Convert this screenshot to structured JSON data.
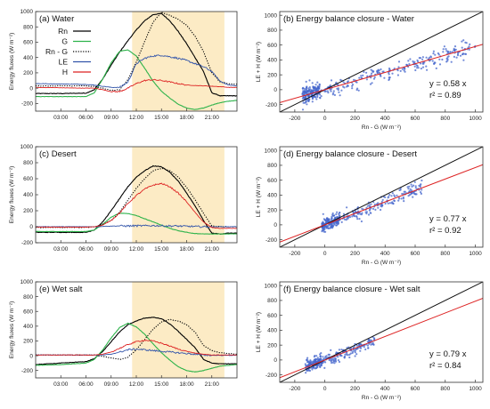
{
  "chart_data": [
    {
      "panel": "a",
      "type": "line",
      "title": "(a) Water",
      "ylabel": "Energy fluxes (W m⁻²)",
      "xticks": [
        "03:00",
        "06:00",
        "09:00",
        "12:00",
        "15:00",
        "18:00",
        "21:00"
      ],
      "xlim_hours": [
        0,
        24
      ],
      "ylim": [
        -300,
        1000
      ],
      "yticks": [
        -200,
        0,
        200,
        400,
        600,
        800,
        1000
      ],
      "shaded_hours": [
        11.5,
        22.5
      ],
      "shade_color": "#fcebc5",
      "legend": [
        "Rn",
        "G",
        "Rn - G",
        "LE",
        "H"
      ],
      "series": [
        {
          "name": "Rn",
          "color": "#000000",
          "dash": "solid",
          "x": [
            0,
            3,
            6,
            7,
            8,
            9,
            10,
            11,
            12,
            13,
            14,
            15,
            16,
            17,
            18,
            19,
            20,
            21,
            22,
            23,
            24
          ],
          "y": [
            -70,
            -70,
            -65,
            -20,
            120,
            300,
            470,
            620,
            760,
            880,
            960,
            975,
            880,
            740,
            580,
            400,
            220,
            -60,
            -100,
            -100,
            -100
          ]
        },
        {
          "name": "G",
          "color": "#2db34a",
          "dash": "solid",
          "x": [
            0,
            3,
            6,
            7,
            8,
            9,
            10,
            11,
            12,
            13,
            14,
            15,
            16,
            17,
            18,
            19,
            20,
            21,
            22,
            23,
            24
          ],
          "y": [
            -110,
            -110,
            -110,
            -60,
            120,
            330,
            480,
            500,
            420,
            260,
            90,
            -40,
            -130,
            -210,
            -260,
            -280,
            -260,
            -220,
            -190,
            -170,
            -160
          ]
        },
        {
          "name": "Rn - G",
          "color": "#000000",
          "dash": "dot",
          "x": [
            0,
            3,
            6,
            7,
            8,
            9,
            10,
            11,
            12,
            13,
            14,
            15,
            16,
            17,
            18,
            19,
            20,
            21,
            22,
            23,
            24
          ],
          "y": [
            30,
            30,
            30,
            20,
            0,
            -30,
            -20,
            110,
            340,
            610,
            860,
            990,
            950,
            900,
            820,
            680,
            480,
            200,
            80,
            60,
            50
          ]
        },
        {
          "name": "LE",
          "color": "#3355aa",
          "dash": "solid",
          "x": [
            0,
            3,
            6,
            7,
            8,
            9,
            10,
            11,
            12,
            13,
            14,
            15,
            16,
            17,
            18,
            19,
            20,
            21,
            22,
            23,
            24
          ],
          "y": [
            60,
            55,
            50,
            40,
            25,
            10,
            10,
            80,
            320,
            390,
            420,
            430,
            410,
            390,
            360,
            320,
            280,
            220,
            90,
            40,
            30
          ]
        },
        {
          "name": "H",
          "color": "#dd2222",
          "dash": "solid",
          "x": [
            0,
            3,
            6,
            7,
            8,
            9,
            10,
            11,
            12,
            13,
            14,
            15,
            16,
            17,
            18,
            19,
            20,
            21,
            22,
            23,
            24
          ],
          "y": [
            10,
            5,
            0,
            0,
            -20,
            -45,
            -45,
            0,
            60,
            100,
            110,
            100,
            80,
            60,
            40,
            35,
            30,
            25,
            20,
            10,
            10
          ]
        }
      ]
    },
    {
      "panel": "b",
      "type": "scatter",
      "title": "(b) Energy balance closure - Water",
      "xlabel": "Rn - G (W m⁻²)",
      "ylabel": "LE + H (W m⁻²)",
      "xlim": [
        -300,
        1050
      ],
      "ylim": [
        -300,
        1050
      ],
      "ticks": [
        -200,
        0,
        200,
        400,
        600,
        800,
        1000
      ],
      "slope": 0.58,
      "r2": 0.89,
      "equation_text": "y = 0.58 x",
      "r2_text": "r² = 0.89",
      "points_x_range": [
        -150,
        1000
      ],
      "points_scatter": 55,
      "point_color": "#4466cc",
      "fit_color": "#dd2222"
    },
    {
      "panel": "c",
      "type": "line",
      "title": "(c) Desert",
      "ylabel": "Energy fluxes (W m⁻²)",
      "xticks": [
        "03:00",
        "06:00",
        "09:00",
        "12:00",
        "15:00",
        "18:00",
        "21:00"
      ],
      "xlim_hours": [
        0,
        24
      ],
      "ylim": [
        -200,
        1000
      ],
      "yticks": [
        -200,
        0,
        200,
        400,
        600,
        800,
        1000
      ],
      "shaded_hours": [
        11.5,
        22.5
      ],
      "shade_color": "#fcebc5",
      "series": [
        {
          "name": "Rn",
          "color": "#000000",
          "dash": "solid",
          "x": [
            0,
            3,
            6,
            7,
            8,
            9,
            10,
            11,
            12,
            13,
            14,
            15,
            16,
            17,
            18,
            19,
            20,
            21,
            22,
            23,
            24
          ],
          "y": [
            -70,
            -70,
            -70,
            -40,
            60,
            200,
            350,
            500,
            620,
            700,
            760,
            750,
            680,
            570,
            420,
            260,
            80,
            -80,
            -90,
            -80,
            -80
          ]
        },
        {
          "name": "G",
          "color": "#2db34a",
          "dash": "solid",
          "x": [
            0,
            3,
            6,
            7,
            8,
            9,
            10,
            11,
            12,
            13,
            14,
            15,
            16,
            17,
            18,
            19,
            20,
            21,
            22,
            23,
            24
          ],
          "y": [
            -60,
            -60,
            -60,
            -40,
            30,
            120,
            170,
            165,
            140,
            100,
            60,
            20,
            -20,
            -50,
            -70,
            -85,
            -90,
            -90,
            -90,
            -90,
            -90
          ]
        },
        {
          "name": "Rn - G",
          "color": "#000000",
          "dash": "dot",
          "x": [
            0,
            3,
            6,
            7,
            8,
            9,
            10,
            11,
            12,
            13,
            14,
            15,
            16,
            17,
            18,
            19,
            20,
            21,
            22,
            23,
            24
          ],
          "y": [
            -10,
            -10,
            -10,
            0,
            30,
            80,
            180,
            330,
            480,
            600,
            700,
            730,
            700,
            620,
            490,
            340,
            170,
            10,
            0,
            0,
            0
          ]
        },
        {
          "name": "LE",
          "color": "#3355aa",
          "dash": "solid",
          "x": [
            0,
            3,
            6,
            7,
            8,
            9,
            10,
            11,
            12,
            13,
            14,
            15,
            16,
            17,
            18,
            19,
            20,
            21,
            22,
            23,
            24
          ],
          "y": [
            0,
            0,
            0,
            0,
            5,
            8,
            10,
            10,
            12,
            12,
            14,
            12,
            10,
            8,
            5,
            3,
            0,
            0,
            0,
            0,
            0
          ]
        },
        {
          "name": "H",
          "color": "#dd2222",
          "dash": "solid",
          "x": [
            0,
            3,
            6,
            7,
            8,
            9,
            10,
            11,
            12,
            13,
            14,
            15,
            16,
            17,
            18,
            19,
            20,
            21,
            22,
            23,
            24
          ],
          "y": [
            -5,
            -5,
            -5,
            0,
            20,
            80,
            170,
            290,
            390,
            470,
            520,
            540,
            500,
            420,
            310,
            180,
            60,
            -10,
            -20,
            -20,
            -20
          ]
        }
      ]
    },
    {
      "panel": "d",
      "type": "scatter",
      "title": "(d) Energy balance closure - Desert",
      "xlabel": "Rn - G (W m⁻²)",
      "ylabel": "LE + H (W m⁻²)",
      "xlim": [
        -300,
        1050
      ],
      "ylim": [
        -300,
        1050
      ],
      "ticks": [
        -200,
        0,
        200,
        400,
        600,
        800,
        1000
      ],
      "slope": 0.77,
      "r2": 0.92,
      "equation_text": "y = 0.77 x",
      "r2_text": "r² = 0.92",
      "points_x_range": [
        -20,
        650
      ],
      "points_scatter": 45,
      "point_color": "#4466cc",
      "fit_color": "#dd2222"
    },
    {
      "panel": "e",
      "type": "line",
      "title": "(e) Wet salt",
      "ylabel": "Energy fluxes (W m⁻²)",
      "xticks": [
        "03:00",
        "06:00",
        "09:00",
        "12:00",
        "15:00",
        "18:00",
        "21:00"
      ],
      "xlim_hours": [
        0,
        24
      ],
      "ylim": [
        -300,
        1000
      ],
      "yticks": [
        -200,
        0,
        200,
        400,
        600,
        800,
        1000
      ],
      "shaded_hours": [
        11.5,
        22.5
      ],
      "shade_color": "#fcebc5",
      "series": [
        {
          "name": "Rn",
          "color": "#000000",
          "dash": "solid",
          "x": [
            0,
            3,
            6,
            7,
            8,
            9,
            10,
            11,
            12,
            13,
            14,
            15,
            16,
            17,
            18,
            19,
            20,
            21,
            22,
            23,
            24
          ],
          "y": [
            -120,
            -100,
            -80,
            -40,
            60,
            190,
            320,
            420,
            470,
            510,
            520,
            500,
            430,
            330,
            220,
            110,
            -50,
            -100,
            -110,
            -110,
            -110
          ]
        },
        {
          "name": "G",
          "color": "#2db34a",
          "dash": "solid",
          "x": [
            0,
            3,
            6,
            7,
            8,
            9,
            10,
            11,
            12,
            13,
            14,
            15,
            16,
            17,
            18,
            19,
            20,
            21,
            22,
            23,
            24
          ],
          "y": [
            -130,
            -120,
            -100,
            -50,
            80,
            240,
            380,
            440,
            390,
            290,
            160,
            40,
            -60,
            -150,
            -200,
            -220,
            -200,
            -170,
            -140,
            -130,
            -120
          ]
        },
        {
          "name": "Rn - G",
          "color": "#000000",
          "dash": "dot",
          "x": [
            0,
            3,
            6,
            7,
            8,
            9,
            10,
            11,
            12,
            13,
            14,
            15,
            16,
            17,
            18,
            19,
            20,
            21,
            22,
            23,
            24
          ],
          "y": [
            10,
            10,
            10,
            10,
            -10,
            -30,
            -50,
            -20,
            80,
            220,
            360,
            460,
            490,
            470,
            420,
            320,
            140,
            70,
            40,
            30,
            20
          ]
        },
        {
          "name": "LE",
          "color": "#3355aa",
          "dash": "solid",
          "x": [
            0,
            3,
            6,
            7,
            8,
            9,
            10,
            11,
            12,
            13,
            14,
            15,
            16,
            17,
            18,
            19,
            20,
            21,
            22,
            23,
            24
          ],
          "y": [
            10,
            10,
            10,
            10,
            10,
            20,
            50,
            80,
            90,
            80,
            70,
            60,
            50,
            40,
            30,
            20,
            10,
            5,
            5,
            5,
            5
          ]
        },
        {
          "name": "H",
          "color": "#dd2222",
          "dash": "solid",
          "x": [
            0,
            3,
            6,
            7,
            8,
            9,
            10,
            11,
            12,
            13,
            14,
            15,
            16,
            17,
            18,
            19,
            20,
            21,
            22,
            23,
            24
          ],
          "y": [
            10,
            10,
            10,
            10,
            20,
            50,
            100,
            150,
            190,
            210,
            200,
            170,
            130,
            90,
            60,
            35,
            20,
            10,
            10,
            10,
            10
          ]
        }
      ]
    },
    {
      "panel": "f",
      "type": "scatter",
      "title": "(f) Energy balance closure - Wet salt",
      "xlabel": "Rn - G (W m⁻²)",
      "ylabel": "LE + H (W m⁻²)",
      "xlim": [
        -300,
        1050
      ],
      "ylim": [
        -300,
        1050
      ],
      "ticks": [
        -200,
        0,
        200,
        400,
        600,
        800,
        1000
      ],
      "slope": 0.79,
      "r2": 0.84,
      "equation_text": "y = 0.79 x",
      "r2_text": "r² = 0.84",
      "points_x_range": [
        -130,
        330
      ],
      "points_scatter": 40,
      "point_color": "#4466cc",
      "fit_color": "#dd2222"
    }
  ]
}
